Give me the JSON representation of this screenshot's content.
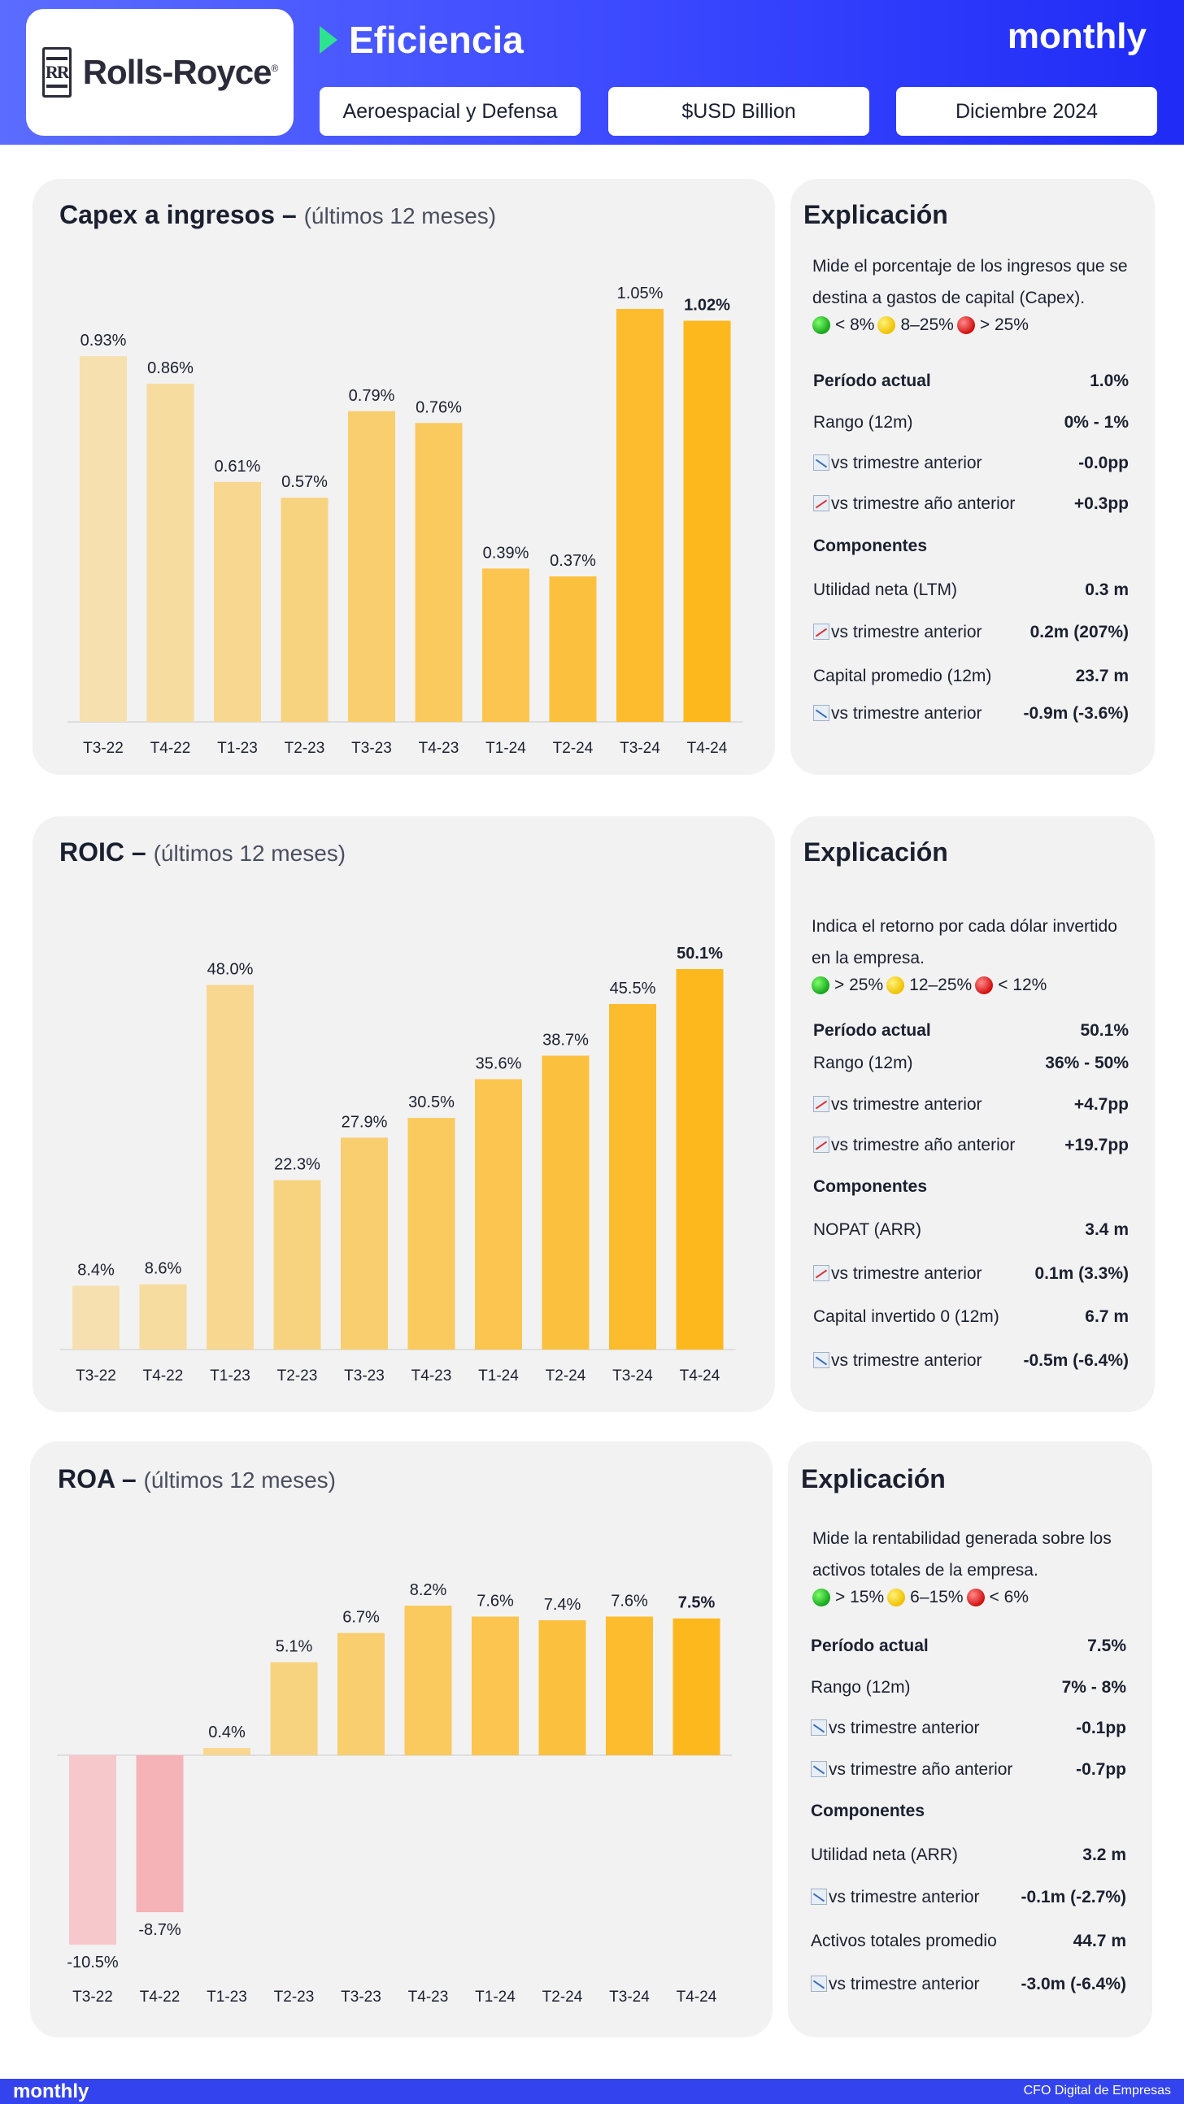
{
  "header": {
    "logo_text": "Rolls-Royce",
    "title": "Eficiencia",
    "brand": "monthly",
    "pills": [
      "Aeroespacial y Defensa",
      "$USD Billion",
      "Diciembre 2024"
    ]
  },
  "colors": {
    "accent": "#3b48ff",
    "bar_light": "#f6e0b0",
    "bar_strong": "#fdb81e",
    "neg_light": "#f7c8cb",
    "neg_strong": "#f5b0b6"
  },
  "chart_data": [
    {
      "type": "bar",
      "title": "Capex a ingresos –",
      "subtitle": "(últimos 12 meses)",
      "categories": [
        "T3-22",
        "T4-22",
        "T1-23",
        "T2-23",
        "T3-23",
        "T4-23",
        "T1-24",
        "T2-24",
        "T3-24",
        "T4-24"
      ],
      "values": [
        0.93,
        0.86,
        0.61,
        0.57,
        0.79,
        0.76,
        0.39,
        0.37,
        1.05,
        1.02
      ],
      "labels": [
        "0.93%",
        "0.86%",
        "0.61%",
        "0.57%",
        "0.79%",
        "0.76%",
        "0.39%",
        "0.37%",
        "1.05%",
        "1.02%"
      ],
      "ylim": [
        0,
        1.05
      ]
    },
    {
      "type": "bar",
      "title": "ROIC –",
      "subtitle": "(últimos 12 meses)",
      "categories": [
        "T3-22",
        "T4-22",
        "T1-23",
        "T2-23",
        "T3-23",
        "T4-23",
        "T1-24",
        "T2-24",
        "T3-24",
        "T4-24"
      ],
      "values": [
        8.4,
        8.6,
        48.0,
        22.3,
        27.9,
        30.5,
        35.6,
        38.7,
        45.5,
        50.1
      ],
      "labels": [
        "8.4%",
        "8.6%",
        "48.0%",
        "22.3%",
        "27.9%",
        "30.5%",
        "35.6%",
        "38.7%",
        "45.5%",
        "50.1%"
      ],
      "ylim": [
        0,
        50.1
      ]
    },
    {
      "type": "bar",
      "title": "ROA –",
      "subtitle": "(últimos 12 meses)",
      "categories": [
        "T3-22",
        "T4-22",
        "T1-23",
        "T2-23",
        "T3-23",
        "T4-23",
        "T1-24",
        "T2-24",
        "T3-24",
        "T4-24"
      ],
      "values": [
        -10.5,
        -8.7,
        0.4,
        5.1,
        6.7,
        8.2,
        7.6,
        7.4,
        7.6,
        7.5
      ],
      "labels": [
        "-10.5%",
        "-8.7%",
        "0.4%",
        "5.1%",
        "6.7%",
        "8.2%",
        "7.6%",
        "7.4%",
        "7.6%",
        "7.5%"
      ],
      "ylim": [
        -10.5,
        8.2
      ]
    }
  ],
  "explanations": [
    {
      "title": "Explicación",
      "desc": "Mide el porcentaje de los ingresos que se destina a gastos de capital (Capex).",
      "legend": [
        "< 8%",
        "8–25%",
        "> 25%"
      ],
      "rows": [
        {
          "k": "Período actual",
          "v": "1.0%",
          "bold": true
        },
        {
          "k": "Rango (12m)",
          "v": "0% - 1%"
        },
        {
          "k": "vs trimestre anterior",
          "v": "-0.0pp",
          "trend": "down"
        },
        {
          "k": "vs trimestre año anterior",
          "v": "+0.3pp",
          "trend": "up"
        },
        {
          "k": "Componentes",
          "v": "",
          "bold": true
        },
        {
          "k": "Utilidad neta (LTM)",
          "v": "0.3 m"
        },
        {
          "k": "vs trimestre anterior",
          "v": "0.2m (207%)",
          "trend": "up"
        },
        {
          "k": "Capital promedio (12m)",
          "v": "23.7 m"
        },
        {
          "k": "vs trimestre anterior",
          "v": "-0.9m (-3.6%)",
          "trend": "down"
        }
      ]
    },
    {
      "title": "Explicación",
      "desc": "Indica el retorno por cada dólar invertido en la empresa.",
      "legend": [
        "> 25%",
        "12–25%",
        "< 12%"
      ],
      "rows": [
        {
          "k": "Período actual",
          "v": "50.1%",
          "bold": true
        },
        {
          "k": "Rango (12m)",
          "v": "36% - 50%"
        },
        {
          "k": "vs trimestre anterior",
          "v": "+4.7pp",
          "trend": "up"
        },
        {
          "k": "vs trimestre año anterior",
          "v": "+19.7pp",
          "trend": "up"
        },
        {
          "k": "Componentes",
          "v": "",
          "bold": true
        },
        {
          "k": "NOPAT (ARR)",
          "v": "3.4 m"
        },
        {
          "k": "vs trimestre anterior",
          "v": "0.1m (3.3%)",
          "trend": "up"
        },
        {
          "k": "Capital invertido 0 (12m)",
          "v": "6.7 m"
        },
        {
          "k": "vs trimestre anterior",
          "v": "-0.5m (-6.4%)",
          "trend": "down"
        }
      ]
    },
    {
      "title": "Explicación",
      "desc": "Mide la rentabilidad generada sobre los activos totales de la empresa.",
      "legend": [
        "> 15%",
        "6–15%",
        "< 6%"
      ],
      "rows": [
        {
          "k": "Período actual",
          "v": "7.5%",
          "bold": true
        },
        {
          "k": "Rango (12m)",
          "v": "7% - 8%"
        },
        {
          "k": "vs trimestre anterior",
          "v": "-0.1pp",
          "trend": "down"
        },
        {
          "k": "vs trimestre año anterior",
          "v": "-0.7pp",
          "trend": "down"
        },
        {
          "k": "Componentes",
          "v": "",
          "bold": true
        },
        {
          "k": "Utilidad neta (ARR)",
          "v": "3.2 m"
        },
        {
          "k": "vs trimestre anterior",
          "v": "-0.1m (-2.7%)",
          "trend": "down"
        },
        {
          "k": "Activos totales promedio",
          "v": "44.7 m"
        },
        {
          "k": "vs trimestre anterior",
          "v": "-3.0m (-6.4%)",
          "trend": "down"
        }
      ]
    }
  ],
  "footer": {
    "left": "monthly",
    "right": "CFO Digital de Empresas"
  }
}
